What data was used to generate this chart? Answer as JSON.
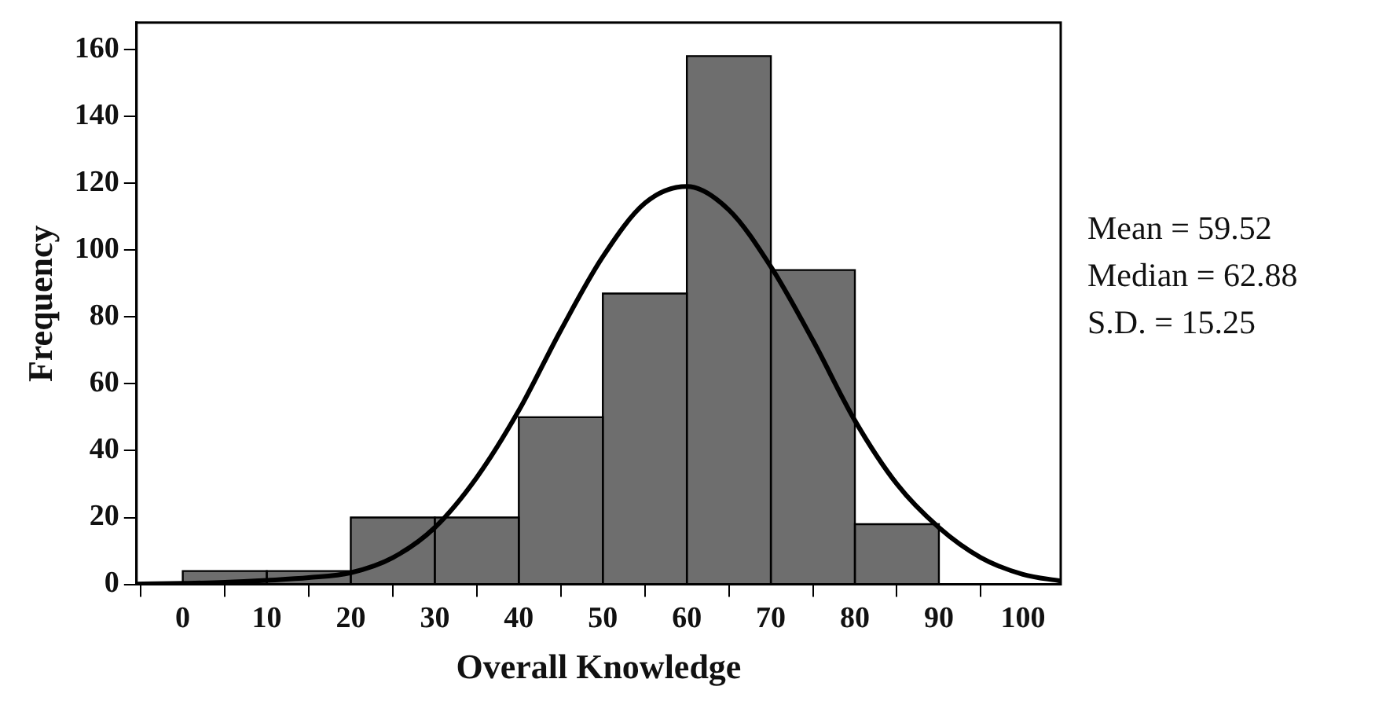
{
  "chart_data": {
    "type": "histogram",
    "xlabel": "Overall Knowledge",
    "ylabel": "Frequency",
    "bins": [
      0,
      10,
      20,
      30,
      40,
      50,
      60,
      70,
      80,
      90
    ],
    "values": [
      4,
      4,
      20,
      20,
      50,
      87,
      158,
      94,
      18
    ],
    "color": "#6e6e6e",
    "series": [
      {
        "type": "line",
        "color": "#000000",
        "x": [
          -5.5,
          0,
          5,
          10,
          15,
          20,
          25,
          30,
          35,
          40,
          45,
          50,
          55,
          60,
          65,
          70,
          75,
          80,
          85,
          90,
          95,
          100,
          104.5
        ],
        "values": [
          0.1,
          0.3,
          0.6,
          1.2,
          2,
          3.5,
          8,
          17,
          32,
          52,
          76,
          98,
          114,
          119,
          112,
          95,
          73,
          49,
          30,
          17,
          8,
          3,
          1
        ]
      }
    ],
    "xlim": [
      -5.5,
      104.5
    ],
    "xticks": [
      0,
      10,
      20,
      30,
      40,
      50,
      60,
      70,
      80,
      90,
      100
    ],
    "ylim": [
      0,
      168
    ],
    "yticks": [
      0,
      20,
      40,
      60,
      80,
      100,
      120,
      140,
      160
    ],
    "grid": false,
    "legend": false,
    "marker": "none",
    "line_style": "solid",
    "annotations": [
      "Mean = 59.52",
      "Median = 62.88",
      "S.D. = 15.25"
    ]
  }
}
